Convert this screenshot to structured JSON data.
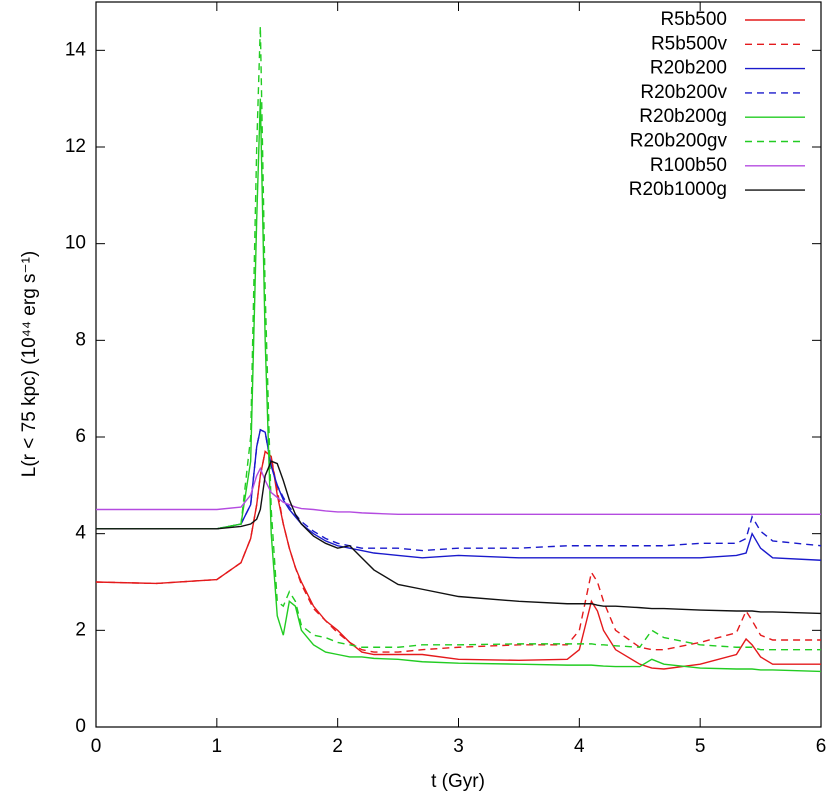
{
  "chart_data": {
    "type": "line",
    "xlabel": "t (Gyr)",
    "ylabel": "L(r < 75 kpc) (10⁴⁴ erg s⁻¹)",
    "x": [
      0,
      0.5,
      1.0,
      1.2,
      1.28,
      1.33,
      1.36,
      1.4,
      1.45,
      1.5,
      1.55,
      1.6,
      1.65,
      1.7,
      1.8,
      1.9,
      2.0,
      2.1,
      2.2,
      2.3,
      2.5,
      2.7,
      3.0,
      3.5,
      3.9,
      4.0,
      4.05,
      4.1,
      4.15,
      4.2,
      4.3,
      4.5,
      4.6,
      4.7,
      5.0,
      5.3,
      5.38,
      5.43,
      5.5,
      5.6,
      6.0
    ],
    "xlim": [
      0,
      6
    ],
    "xticks": [
      0,
      1,
      2,
      3,
      4,
      5,
      6
    ],
    "ylim": [
      0,
      15
    ],
    "yticks": [
      0,
      2,
      4,
      6,
      8,
      10,
      12,
      14
    ],
    "grid": false,
    "legend": "top-right",
    "series": [
      {
        "name": "R5b500",
        "color": "#e41a1c",
        "style": "solid",
        "values": [
          3.0,
          2.97,
          3.05,
          3.4,
          3.9,
          4.6,
          5.2,
          5.7,
          5.6,
          4.8,
          4.2,
          3.7,
          3.3,
          3.0,
          2.5,
          2.2,
          2.0,
          1.75,
          1.55,
          1.5,
          1.5,
          1.5,
          1.4,
          1.38,
          1.4,
          1.6,
          2.1,
          2.6,
          2.4,
          2.0,
          1.6,
          1.3,
          1.22,
          1.2,
          1.3,
          1.5,
          1.82,
          1.7,
          1.45,
          1.3,
          1.3
        ]
      },
      {
        "name": "R5b500v",
        "color": "#e41a1c",
        "style": "dashed",
        "values": [
          3.0,
          2.97,
          3.05,
          3.4,
          3.9,
          4.6,
          5.2,
          5.7,
          5.6,
          4.9,
          4.2,
          3.7,
          3.3,
          2.95,
          2.45,
          2.2,
          1.95,
          1.75,
          1.6,
          1.55,
          1.55,
          1.6,
          1.65,
          1.7,
          1.7,
          2.0,
          2.6,
          3.2,
          3.0,
          2.6,
          2.0,
          1.65,
          1.6,
          1.6,
          1.75,
          1.95,
          2.4,
          2.2,
          1.9,
          1.8,
          1.8
        ]
      },
      {
        "name": "R20b200",
        "color": "#1a1acc",
        "style": "solid",
        "values": [
          4.1,
          4.1,
          4.1,
          4.2,
          4.6,
          5.8,
          6.15,
          6.1,
          5.4,
          5.0,
          4.7,
          4.5,
          4.35,
          4.2,
          4.0,
          3.85,
          3.75,
          3.7,
          3.65,
          3.6,
          3.55,
          3.5,
          3.55,
          3.5,
          3.5,
          3.5,
          3.5,
          3.5,
          3.5,
          3.5,
          3.5,
          3.5,
          3.5,
          3.5,
          3.5,
          3.55,
          3.6,
          4.0,
          3.7,
          3.5,
          3.45
        ]
      },
      {
        "name": "R20b200v",
        "color": "#1a1acc",
        "style": "dashed",
        "values": [
          4.1,
          4.1,
          4.1,
          4.2,
          4.6,
          5.8,
          6.15,
          6.1,
          5.4,
          5.0,
          4.75,
          4.55,
          4.4,
          4.25,
          4.05,
          3.9,
          3.8,
          3.75,
          3.7,
          3.7,
          3.7,
          3.65,
          3.7,
          3.7,
          3.75,
          3.75,
          3.75,
          3.75,
          3.75,
          3.75,
          3.75,
          3.75,
          3.75,
          3.75,
          3.8,
          3.8,
          3.9,
          4.35,
          4.05,
          3.85,
          3.75
        ]
      },
      {
        "name": "R20b200g",
        "color": "#22cc22",
        "style": "solid",
        "values": [
          4.1,
          4.1,
          4.1,
          4.2,
          5.5,
          10.5,
          13.0,
          8.0,
          4.0,
          2.3,
          1.9,
          2.6,
          2.5,
          2.0,
          1.7,
          1.55,
          1.5,
          1.45,
          1.45,
          1.42,
          1.4,
          1.35,
          1.32,
          1.3,
          1.28,
          1.28,
          1.28,
          1.28,
          1.27,
          1.26,
          1.25,
          1.25,
          1.4,
          1.3,
          1.22,
          1.2,
          1.2,
          1.2,
          1.18,
          1.18,
          1.15
        ]
      },
      {
        "name": "R20b200gv",
        "color": "#22cc22",
        "style": "dashed",
        "values": [
          4.1,
          4.1,
          4.1,
          4.2,
          6.0,
          12.0,
          14.5,
          9.0,
          4.5,
          2.6,
          2.5,
          2.8,
          2.6,
          2.1,
          1.9,
          1.85,
          1.75,
          1.7,
          1.65,
          1.65,
          1.65,
          1.7,
          1.7,
          1.72,
          1.72,
          1.72,
          1.72,
          1.72,
          1.7,
          1.7,
          1.68,
          1.65,
          2.0,
          1.85,
          1.7,
          1.65,
          1.65,
          1.65,
          1.6,
          1.6,
          1.6
        ]
      },
      {
        "name": "R100b50",
        "color": "#b44be0",
        "style": "solid",
        "values": [
          4.5,
          4.5,
          4.5,
          4.55,
          4.8,
          5.2,
          5.35,
          5.1,
          4.85,
          4.75,
          4.65,
          4.6,
          4.55,
          4.52,
          4.5,
          4.47,
          4.45,
          4.45,
          4.43,
          4.42,
          4.4,
          4.4,
          4.4,
          4.4,
          4.4,
          4.4,
          4.4,
          4.4,
          4.4,
          4.4,
          4.4,
          4.4,
          4.4,
          4.4,
          4.4,
          4.4,
          4.4,
          4.4,
          4.4,
          4.4,
          4.4
        ]
      },
      {
        "name": "R20b1000g",
        "color": "#111111",
        "style": "solid",
        "values": [
          4.1,
          4.1,
          4.1,
          4.15,
          4.2,
          4.3,
          4.5,
          5.2,
          5.5,
          5.45,
          5.1,
          4.7,
          4.4,
          4.2,
          3.95,
          3.8,
          3.7,
          3.75,
          3.5,
          3.25,
          2.95,
          2.85,
          2.7,
          2.6,
          2.55,
          2.55,
          2.55,
          2.55,
          2.52,
          2.5,
          2.5,
          2.47,
          2.45,
          2.45,
          2.42,
          2.4,
          2.4,
          2.4,
          2.38,
          2.38,
          2.35
        ]
      }
    ]
  }
}
